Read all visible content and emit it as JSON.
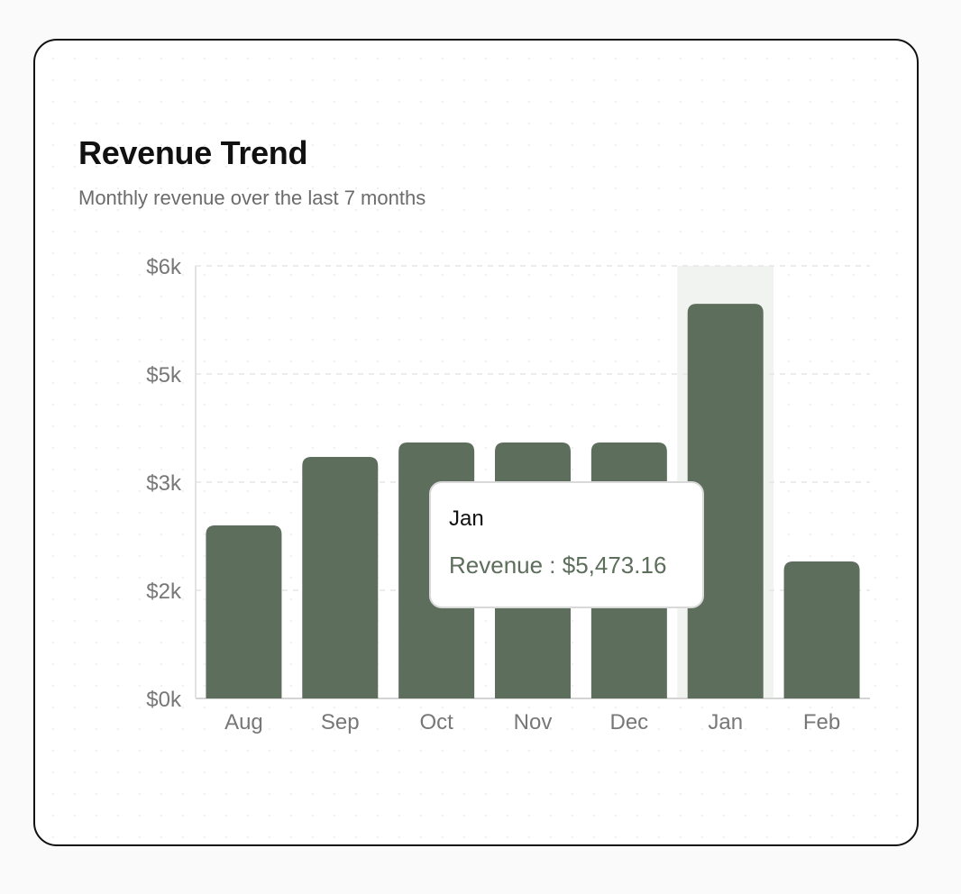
{
  "card": {
    "title": "Revenue Trend",
    "subtitle": "Monthly revenue over the last 7 months"
  },
  "colors": {
    "bar": "#5d6e5c",
    "highlight_band": "#f1f3f0",
    "grid": "#e6e6e6",
    "tick_text": "#777777"
  },
  "chart_data": {
    "type": "bar",
    "title": "Revenue Trend",
    "subtitle": "Monthly revenue over the last 7 months",
    "categories": [
      "Aug",
      "Sep",
      "Oct",
      "Nov",
      "Dec",
      "Jan",
      "Feb"
    ],
    "series": [
      {
        "values": [
          2400,
          3350,
          3550,
          3550,
          3550,
          5473.16,
          1900
        ]
      }
    ],
    "yticks": [
      0,
      1500,
      3000,
      4500,
      6000
    ],
    "ytick_labels": [
      "$0k",
      "$2k",
      "$3k",
      "$5k",
      "$6k"
    ],
    "ylim": [
      0,
      6000
    ],
    "xlabel": "",
    "ylabel": "",
    "grid": "horizontal-dashed",
    "highlighted_category": "Jan",
    "tooltip": {
      "title": "Jan",
      "label": "Revenue : $5,473.16"
    }
  }
}
